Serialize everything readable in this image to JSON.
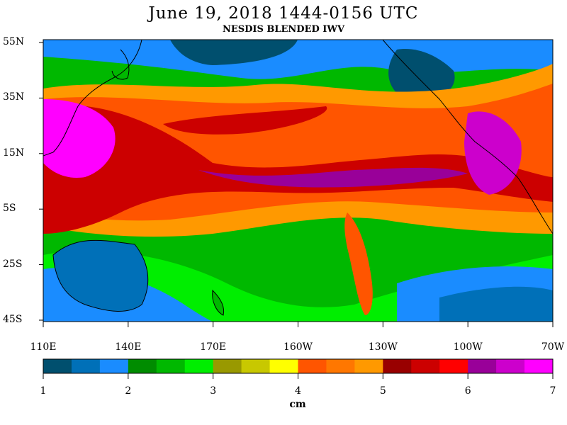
{
  "header": {
    "title": "June 19, 2018  1444-0156 UTC",
    "subtitle": "NESDIS BLENDED IWV"
  },
  "map": {
    "region": "Pacific Ocean",
    "lat_labels": [
      "55N",
      "35N",
      "15N",
      "5S",
      "25S",
      "45S"
    ],
    "lon_labels": [
      "110E",
      "140E",
      "170E",
      "160W",
      "130W",
      "100W",
      "70W"
    ],
    "lat_range": [
      -45,
      55
    ],
    "lon_range": [
      110,
      290
    ]
  },
  "colorbar": {
    "units": "cm",
    "tick_labels": [
      "1",
      "2",
      "3",
      "4",
      "5",
      "6",
      "7"
    ],
    "range": [
      1,
      7
    ],
    "colors": [
      "#004f6e",
      "#0070b8",
      "#1a8cff",
      "#008c00",
      "#00b800",
      "#00ee00",
      "#999900",
      "#c8c800",
      "#ffff00",
      "#ff5500",
      "#ff7700",
      "#ff9900",
      "#990000",
      "#cc0000",
      "#ff0000",
      "#990099",
      "#cc00cc",
      "#ff00ff"
    ]
  }
}
